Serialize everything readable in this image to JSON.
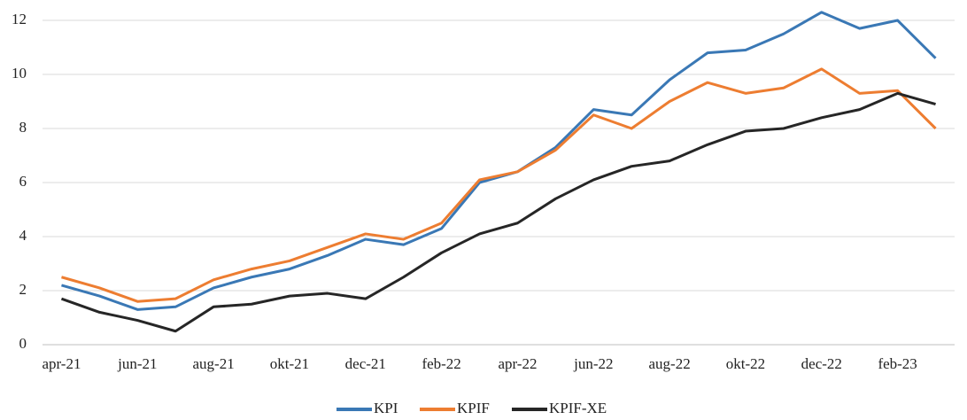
{
  "chart_data": {
    "type": "line",
    "categories": [
      "apr-21",
      null,
      "jun-21",
      null,
      "aug-21",
      null,
      "okt-21",
      null,
      "dec-21",
      null,
      "feb-22",
      null,
      "apr-22",
      null,
      "jun-22",
      null,
      "aug-22",
      null,
      "okt-22",
      null,
      "dec-22",
      null,
      "feb-23",
      null
    ],
    "series": [
      {
        "name": "KPI",
        "color": "#3a78b5",
        "values": [
          2.2,
          1.8,
          1.3,
          1.4,
          2.1,
          2.5,
          2.8,
          3.3,
          3.9,
          3.7,
          4.3,
          6.0,
          6.4,
          7.3,
          8.7,
          8.5,
          9.8,
          10.8,
          10.9,
          11.5,
          12.3,
          11.7,
          12.0,
          10.6
        ]
      },
      {
        "name": "KPIF",
        "color": "#ed7d31",
        "values": [
          2.5,
          2.1,
          1.6,
          1.7,
          2.4,
          2.8,
          3.1,
          3.6,
          4.1,
          3.9,
          4.5,
          6.1,
          6.4,
          7.2,
          8.5,
          8.0,
          9.0,
          9.7,
          9.3,
          9.5,
          10.2,
          9.3,
          9.4,
          8.0
        ]
      },
      {
        "name": "KPIF-XE",
        "color": "#262626",
        "values": [
          1.7,
          1.2,
          0.9,
          0.5,
          1.4,
          1.5,
          1.8,
          1.9,
          1.7,
          2.5,
          3.4,
          4.1,
          4.5,
          5.4,
          6.1,
          6.6,
          6.8,
          7.4,
          7.9,
          8.0,
          8.4,
          8.7,
          9.3,
          8.9
        ]
      }
    ],
    "ylim": [
      0,
      12
    ],
    "yticks": [
      0,
      2,
      4,
      6,
      8,
      10,
      12
    ],
    "grid": true,
    "legend": "bottom"
  }
}
